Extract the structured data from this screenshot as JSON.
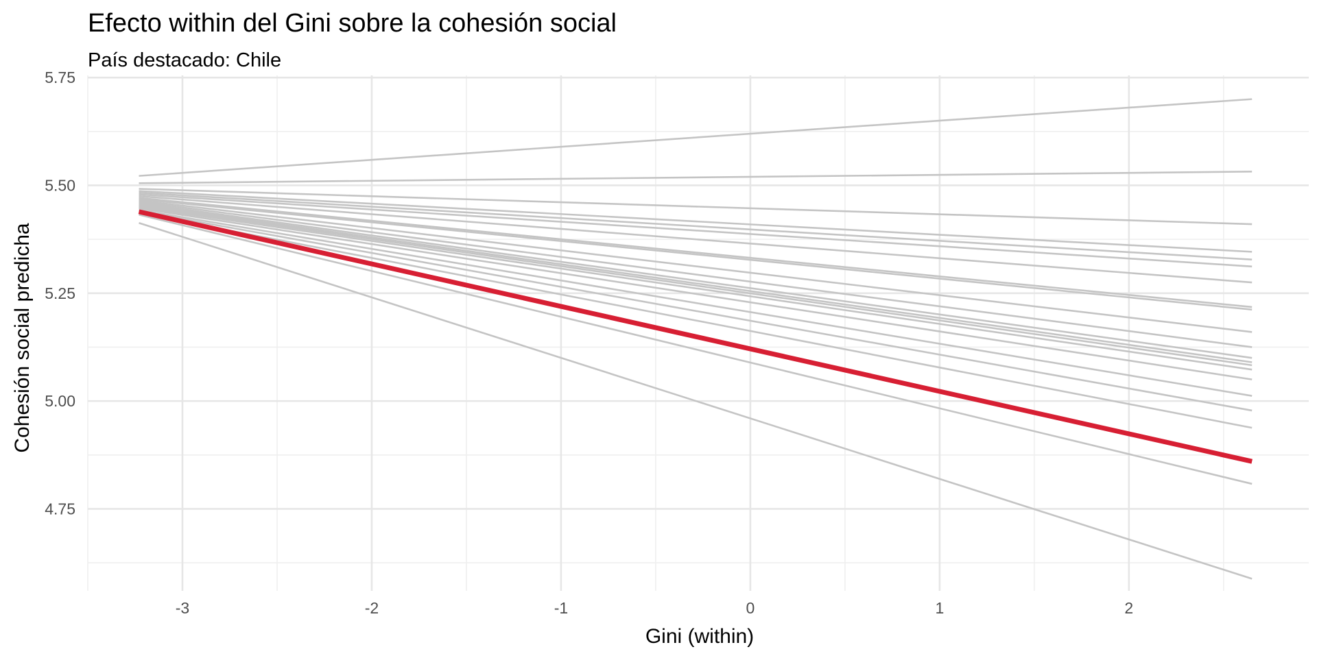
{
  "chart_data": {
    "type": "line",
    "title": "Efecto within del Gini sobre la cohesión social",
    "subtitle": "País destacado: Chile",
    "xlabel": "Gini (within)",
    "ylabel": "Cohesión social predicha",
    "xlim": [
      -3.5,
      2.95
    ],
    "ylim": [
      4.56,
      5.755
    ],
    "x_ticks": [
      -3,
      -2,
      -1,
      0,
      1,
      2
    ],
    "x_tick_labels": [
      "-3",
      "-2",
      "-1",
      "0",
      "1",
      "2"
    ],
    "y_ticks": [
      4.75,
      5.0,
      5.25,
      5.5,
      5.75
    ],
    "y_tick_labels": [
      "4.75",
      "5.00",
      "5.25",
      "5.50",
      "5.75"
    ],
    "grid": true,
    "legend": "none",
    "colors": {
      "background": "#ffffff",
      "other_countries": "#c4c4c4",
      "highlight": "#d71f33",
      "grid": "#e6e6e6"
    },
    "highlighted_series": "Chile",
    "series": [
      {
        "name": "Chile",
        "highlight": true,
        "x": [
          -3.23,
          2.65
        ],
        "y": [
          5.439,
          4.86
        ]
      },
      {
        "highlight": false,
        "x": [
          -3.23,
          2.65
        ],
        "y": [
          5.522,
          5.7
        ]
      },
      {
        "highlight": false,
        "x": [
          -3.23,
          2.65
        ],
        "y": [
          5.505,
          5.532
        ]
      },
      {
        "highlight": false,
        "x": [
          -3.23,
          2.65
        ],
        "y": [
          5.492,
          5.41
        ]
      },
      {
        "highlight": false,
        "x": [
          -3.23,
          2.65
        ],
        "y": [
          5.487,
          5.346
        ]
      },
      {
        "highlight": false,
        "x": [
          -3.23,
          2.65
        ],
        "y": [
          5.483,
          5.328
        ]
      },
      {
        "highlight": false,
        "x": [
          -3.23,
          2.65
        ],
        "y": [
          5.479,
          5.312
        ]
      },
      {
        "highlight": false,
        "x": [
          -3.23,
          2.65
        ],
        "y": [
          5.475,
          5.275
        ]
      },
      {
        "highlight": false,
        "x": [
          -3.23,
          2.65
        ],
        "y": [
          5.471,
          5.218
        ]
      },
      {
        "highlight": false,
        "x": [
          -3.23,
          2.65
        ],
        "y": [
          5.468,
          5.212
        ]
      },
      {
        "highlight": false,
        "x": [
          -3.23,
          2.65
        ],
        "y": [
          5.465,
          5.16
        ]
      },
      {
        "highlight": false,
        "x": [
          -3.23,
          2.65
        ],
        "y": [
          5.462,
          5.125
        ]
      },
      {
        "highlight": false,
        "x": [
          -3.23,
          2.65
        ],
        "y": [
          5.459,
          5.1
        ]
      },
      {
        "highlight": false,
        "x": [
          -3.23,
          2.65
        ],
        "y": [
          5.456,
          5.09
        ]
      },
      {
        "highlight": false,
        "x": [
          -3.23,
          2.65
        ],
        "y": [
          5.453,
          5.083
        ]
      },
      {
        "highlight": false,
        "x": [
          -3.23,
          2.65
        ],
        "y": [
          5.45,
          5.073
        ]
      },
      {
        "highlight": false,
        "x": [
          -3.23,
          2.65
        ],
        "y": [
          5.447,
          5.05
        ]
      },
      {
        "highlight": false,
        "x": [
          -3.23,
          2.65
        ],
        "y": [
          5.443,
          5.012
        ]
      },
      {
        "highlight": false,
        "x": [
          -3.23,
          2.65
        ],
        "y": [
          5.44,
          4.978
        ]
      },
      {
        "highlight": false,
        "x": [
          -3.23,
          2.65
        ],
        "y": [
          5.436,
          4.938
        ]
      },
      {
        "highlight": false,
        "x": [
          -3.23,
          2.65
        ],
        "y": [
          5.432,
          4.808
        ]
      },
      {
        "highlight": false,
        "x": [
          -3.23,
          2.65
        ],
        "y": [
          5.413,
          4.588
        ]
      }
    ]
  }
}
